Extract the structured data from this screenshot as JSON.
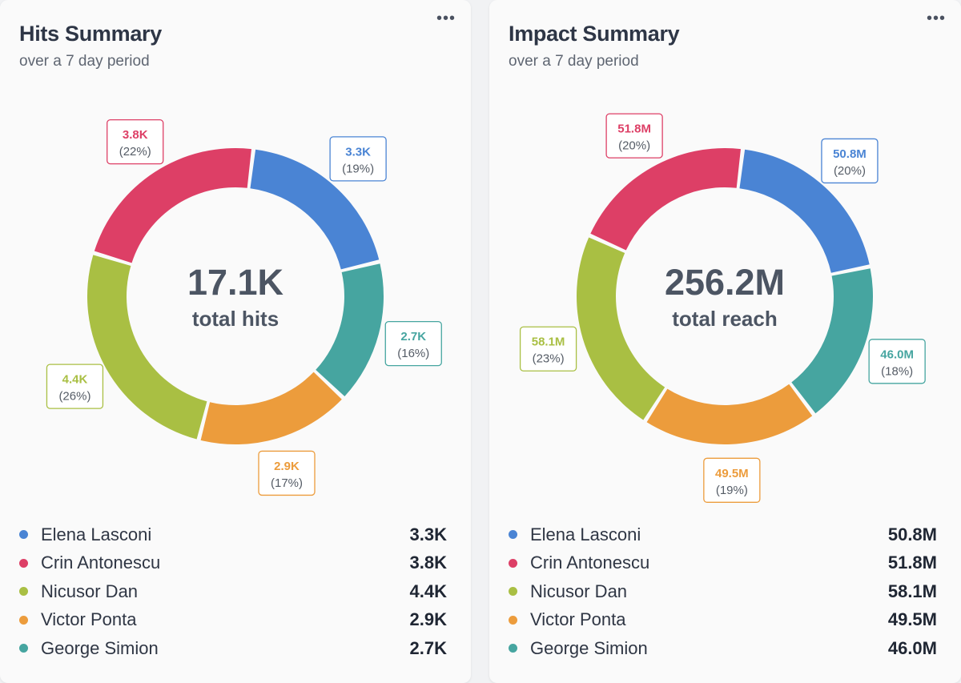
{
  "palette": {
    "elena": "#4a84d4",
    "crin": "#dd3f66",
    "nicusor": "#a9bf43",
    "victor": "#ec9c3c",
    "george": "#46a5a0"
  },
  "cards": [
    {
      "title": "Hits Summary",
      "subtitle": "over a 7 day period",
      "menu_icon": "more-horizontal-icon",
      "center_value": "17.1K",
      "center_label": "total hits",
      "legend": [
        {
          "name": "Elena Lasconi",
          "value": "3.3K"
        },
        {
          "name": "Crin Antonescu",
          "value": "3.8K"
        },
        {
          "name": "Nicusor Dan",
          "value": "4.4K"
        },
        {
          "name": "Victor Ponta",
          "value": "2.9K"
        },
        {
          "name": "George Simion",
          "value": "2.7K"
        }
      ]
    },
    {
      "title": "Impact Summary",
      "subtitle": "over a 7 day period",
      "menu_icon": "more-horizontal-icon",
      "center_value": "256.2M",
      "center_label": "total reach",
      "legend": [
        {
          "name": "Elena Lasconi",
          "value": "50.8M"
        },
        {
          "name": "Crin Antonescu",
          "value": "51.8M"
        },
        {
          "name": "Nicusor Dan",
          "value": "58.1M"
        },
        {
          "name": "Victor Ponta",
          "value": "49.5M"
        },
        {
          "name": "George Simion",
          "value": "46.0M"
        }
      ]
    }
  ],
  "chart_data": [
    {
      "type": "pie",
      "variant": "donut",
      "title": "Hits Summary",
      "subtitle": "over a 7 day period",
      "total": 17100,
      "total_label": "17.1K",
      "categories": [
        "Elena Lasconi",
        "Crin Antonescu",
        "Nicusor Dan",
        "Victor Ponta",
        "George Simion"
      ],
      "values": [
        3300,
        3800,
        4400,
        2900,
        2700
      ],
      "value_labels": [
        "3.3K",
        "3.8K",
        "4.4K",
        "2.9K",
        "2.7K"
      ],
      "percent_labels": [
        "(19%)",
        "(22%)",
        "(26%)",
        "(17%)",
        "(16%)"
      ],
      "colors": [
        "#4a84d4",
        "#dd3f66",
        "#a9bf43",
        "#ec9c3c",
        "#46a5a0"
      ]
    },
    {
      "type": "pie",
      "variant": "donut",
      "title": "Impact Summary",
      "subtitle": "over a 7 day period",
      "total": 256200000,
      "total_label": "256.2M",
      "categories": [
        "Elena Lasconi",
        "Crin Antonescu",
        "Nicusor Dan",
        "Victor Ponta",
        "George Simion"
      ],
      "values": [
        50800000,
        51800000,
        58100000,
        49500000,
        46000000
      ],
      "value_labels": [
        "50.8M",
        "51.8M",
        "58.1M",
        "49.5M",
        "46.0M"
      ],
      "percent_labels": [
        "(20%)",
        "(20%)",
        "(23%)",
        "(19%)",
        "(18%)"
      ],
      "colors": [
        "#4a84d4",
        "#dd3f66",
        "#a9bf43",
        "#ec9c3c",
        "#46a5a0"
      ]
    }
  ]
}
